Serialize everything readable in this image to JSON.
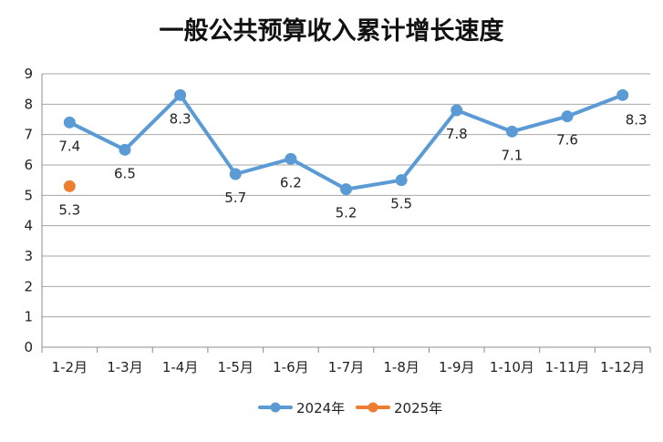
{
  "chart_data": {
    "type": "line",
    "title": "一般公共预算收入累计增长速度",
    "categories": [
      "1-2月",
      "1-3月",
      "1-4月",
      "1-5月",
      "1-6月",
      "1-7月",
      "1-8月",
      "1-9月",
      "1-10月",
      "1-11月",
      "1-12月"
    ],
    "series": [
      {
        "name": "2024年",
        "color": "#5b9bd5",
        "values": [
          7.4,
          6.5,
          8.3,
          5.7,
          6.2,
          5.2,
          5.5,
          7.8,
          7.1,
          7.6,
          8.3
        ]
      },
      {
        "name": "2025年",
        "color": "#ed7d31",
        "values": [
          5.3,
          null,
          null,
          null,
          null,
          null,
          null,
          null,
          null,
          null,
          null
        ]
      }
    ],
    "ylim": [
      0,
      9
    ],
    "yticks": [
      0,
      1,
      2,
      3,
      4,
      5,
      6,
      7,
      8,
      9
    ],
    "grid": true,
    "legend_position": "bottom",
    "xlabel": "",
    "ylabel": ""
  }
}
